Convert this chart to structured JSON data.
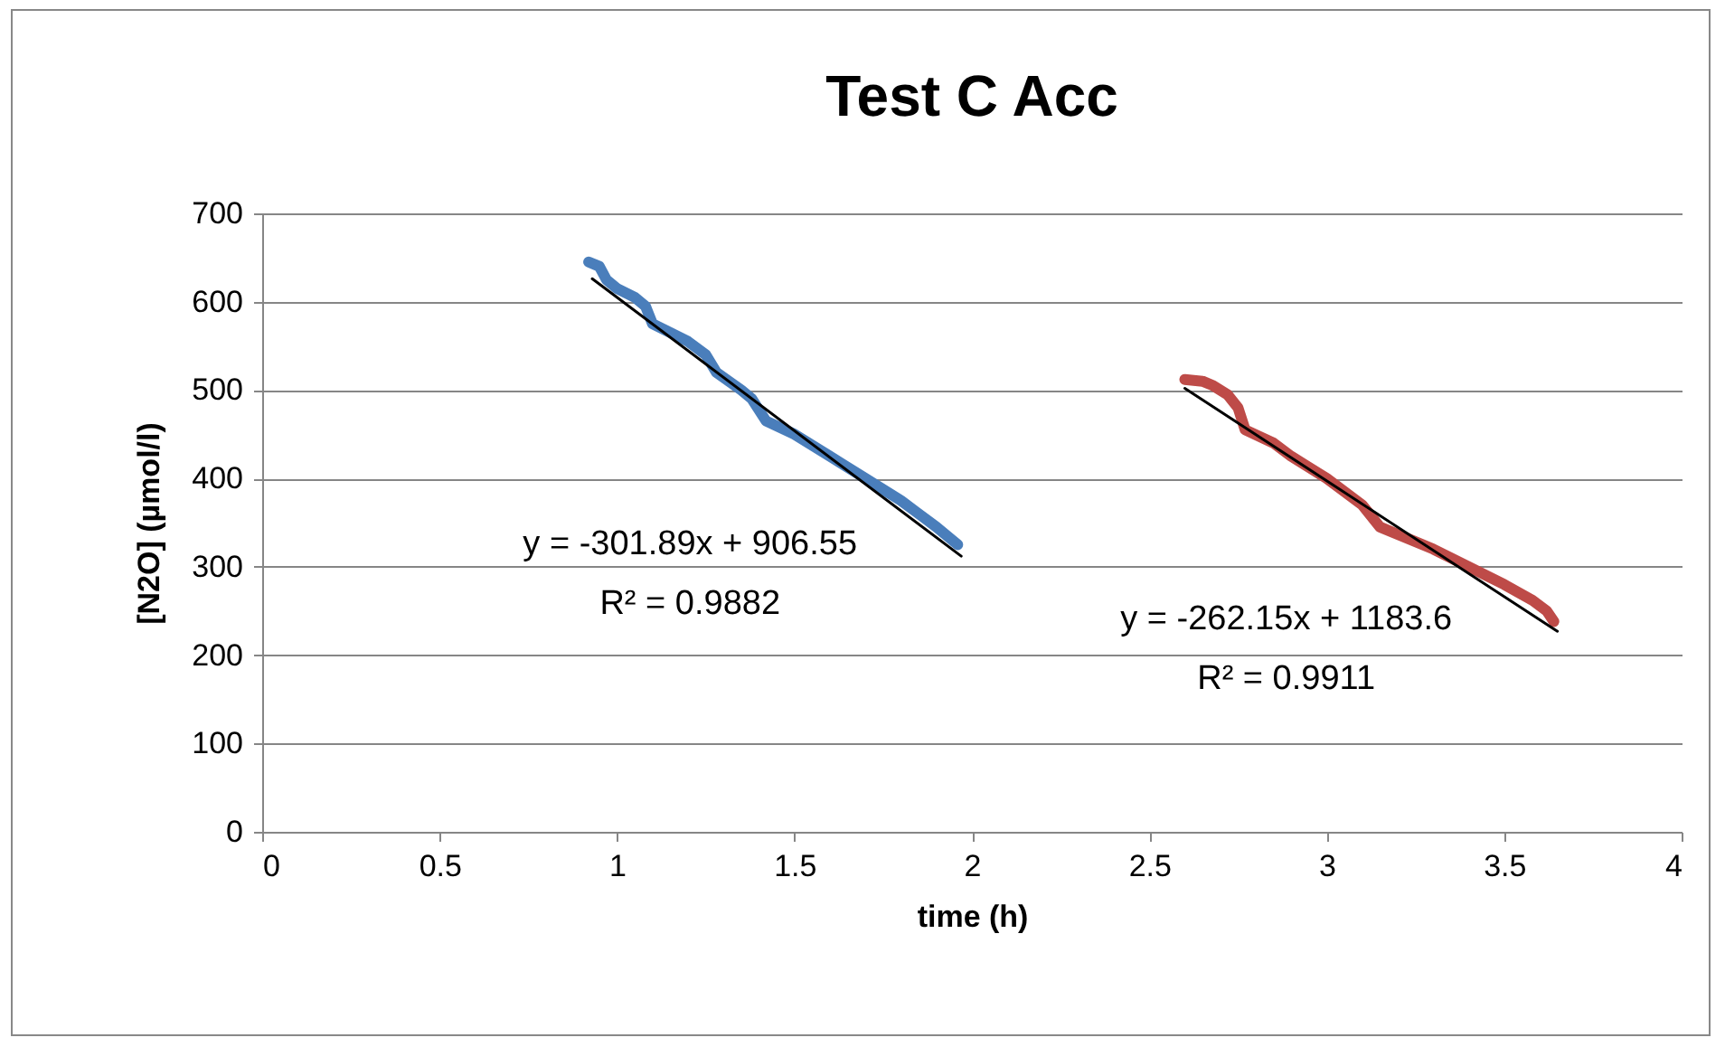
{
  "chart_data": {
    "type": "line",
    "title": "Test C Acc",
    "xlabel": "time (h)",
    "ylabel": "[N2O] (µmol/l)",
    "series": [
      {
        "color": "#4a7ebb",
        "x": [
          0.92,
          0.95,
          0.97,
          1.0,
          1.05,
          1.08,
          1.1,
          1.2,
          1.25,
          1.28,
          1.35,
          1.38,
          1.42,
          1.5,
          1.6,
          1.7,
          1.8,
          1.9,
          1.93,
          1.96
        ],
        "values": [
          645,
          640,
          625,
          615,
          605,
          595,
          575,
          555,
          540,
          520,
          500,
          490,
          465,
          450,
          425,
          400,
          375,
          345,
          335,
          325
        ]
      },
      {
        "color": "#be4b48",
        "x": [
          2.6,
          2.65,
          2.68,
          2.72,
          2.75,
          2.77,
          2.85,
          2.9,
          3.0,
          3.1,
          3.15,
          3.3,
          3.4,
          3.5,
          3.58,
          3.62,
          3.64
        ],
        "values": [
          512,
          510,
          505,
          495,
          480,
          455,
          440,
          425,
          400,
          370,
          345,
          320,
          300,
          280,
          262,
          250,
          238
        ]
      },
      {
        "type": "line",
        "color": "#000000",
        "x": [
          0.93,
          1.97
        ],
        "values": [
          626,
          312
        ]
      },
      {
        "type": "line",
        "color": "#000000",
        "x": [
          2.6,
          3.65
        ],
        "values": [
          502,
          227
        ]
      }
    ],
    "annotations": [
      "y = -301.89x + 906.55\nR² = 0.9882",
      "y = -262.15x + 1183.6\nR² = 0.9911"
    ],
    "xlim": [
      0,
      4
    ],
    "xticks": [
      0,
      0.5,
      1,
      1.5,
      2,
      2.5,
      3,
      3.5,
      4
    ],
    "ylim": [
      0,
      700
    ],
    "yticks": [
      0,
      100,
      200,
      300,
      400,
      500,
      600,
      700
    ],
    "grid": "y"
  }
}
